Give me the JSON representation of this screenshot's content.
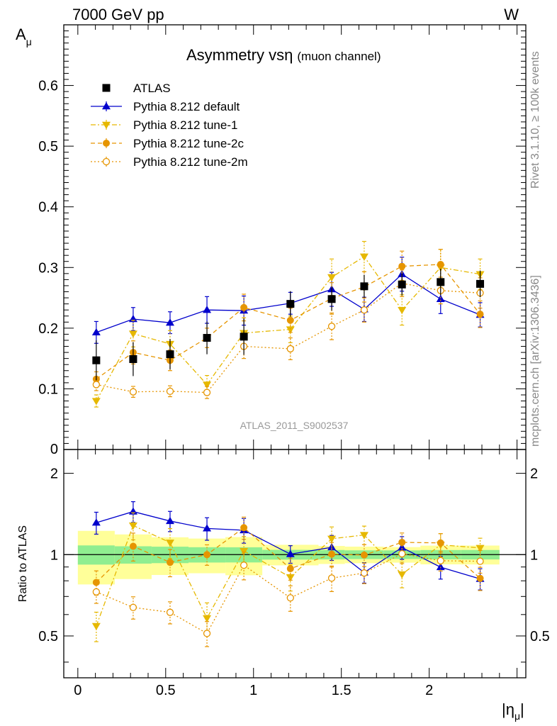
{
  "header": {
    "left": "7000 GeV pp",
    "right": "W"
  },
  "side_labels": {
    "rivet": "Rivet 3.1.10, ≥ 100k events",
    "mcplots": "mcplots.cern.ch [arXiv:1306.3436]"
  },
  "colors": {
    "data": "#000000",
    "default": "#0000cc",
    "tune1": "#e6b800",
    "tune2c": "#e69500",
    "tune2m": "#e69500",
    "band_inner": "#90ee90",
    "band_outer": "#ffff99",
    "watermark": "#999999"
  },
  "chart_data": {
    "type": "scatter",
    "title_main": "Asymmetry vs",
    "title_symbol": "η",
    "title_sub": "(muon channel)",
    "analysis_tag": "ATLAS_2011_S9002537",
    "ylabel_main": "A",
    "ylabel_sub": "μ",
    "ratio_ylabel": "Ratio to ATLAS",
    "xlabel_main": "|η",
    "xlabel_sub": "μ",
    "xlabel_close": "|",
    "xlim": [
      -0.08,
      2.55
    ],
    "ylim_main": [
      0.0,
      0.7
    ],
    "ylim_ratio": [
      0.35,
      2.45
    ],
    "x_ticks": [
      0,
      0.5,
      1,
      1.5,
      2
    ],
    "x_tick_labels": [
      "0",
      "0.5",
      "1",
      "1.5",
      "2"
    ],
    "y_ticks_main": [
      0.1,
      0.2,
      0.3,
      0.4,
      0.5,
      0.6
    ],
    "y_tick_labels_main": [
      "0.1",
      "0.2",
      "0.3",
      "0.4",
      "0.5",
      "0.6"
    ],
    "y_zero_label": "0",
    "y_ticks_ratio": [
      0.5,
      1,
      2
    ],
    "y_tick_labels_ratio": [
      "0.5",
      "1",
      "2"
    ],
    "bins": [
      [
        0.0,
        0.21
      ],
      [
        0.21,
        0.42
      ],
      [
        0.42,
        0.63
      ],
      [
        0.63,
        0.84
      ],
      [
        0.84,
        1.05
      ],
      [
        1.05,
        1.37
      ],
      [
        1.37,
        1.52
      ],
      [
        1.52,
        1.74
      ],
      [
        1.74,
        1.95
      ],
      [
        1.95,
        2.18
      ],
      [
        2.18,
        2.4
      ]
    ],
    "x": [
      0.105,
      0.315,
      0.525,
      0.735,
      0.945,
      1.21,
      1.445,
      1.63,
      1.845,
      2.065,
      2.29
    ],
    "data": {
      "name": "ATLAS",
      "values": [
        0.147,
        0.149,
        0.157,
        0.184,
        0.186,
        0.24,
        0.248,
        0.269,
        0.272,
        0.276,
        0.273
      ],
      "err_inner": [
        0.012,
        0.011,
        0.011,
        0.012,
        0.012,
        0.01,
        0.01,
        0.01,
        0.01,
        0.011,
        0.011
      ],
      "err_outer": [
        0.033,
        0.028,
        0.025,
        0.027,
        0.03,
        0.021,
        0.019,
        0.019,
        0.018,
        0.022,
        0.022
      ]
    },
    "series": [
      {
        "name": "Pythia 8.212 default",
        "key": "default",
        "marker": "triangle-up",
        "dash": "",
        "values": [
          0.193,
          0.215,
          0.209,
          0.23,
          0.229,
          0.241,
          0.264,
          0.231,
          0.289,
          0.248,
          0.222
        ],
        "errors": [
          0.018,
          0.019,
          0.018,
          0.022,
          0.024,
          0.018,
          0.028,
          0.02,
          0.028,
          0.024,
          0.02
        ]
      },
      {
        "name": "Pythia 8.212 tune-1",
        "key": "tune1",
        "marker": "triangle-down",
        "dash": "7,3,2,3",
        "values": [
          0.08,
          0.191,
          0.174,
          0.107,
          0.192,
          0.198,
          0.284,
          0.318,
          0.23,
          0.3,
          0.289
        ],
        "errors": [
          0.01,
          0.022,
          0.022,
          0.015,
          0.025,
          0.022,
          0.03,
          0.025,
          0.025,
          0.03,
          0.025
        ]
      },
      {
        "name": "Pythia 8.212 tune-2c",
        "key": "tune2c",
        "marker": "circle",
        "dash": "6,4",
        "values": [
          0.116,
          0.16,
          0.147,
          0.184,
          0.234,
          0.213,
          0.249,
          0.268,
          0.302,
          0.305,
          0.223
        ],
        "errors": [
          0.012,
          0.019,
          0.017,
          0.016,
          0.022,
          0.02,
          0.026,
          0.025,
          0.025,
          0.025,
          0.022
        ]
      },
      {
        "name": "Pythia 8.212 tune-2m",
        "key": "tune2m",
        "marker": "circle-open",
        "dash": "2,3",
        "values": [
          0.107,
          0.095,
          0.096,
          0.094,
          0.17,
          0.166,
          0.203,
          0.23,
          0.274,
          0.262,
          0.258
        ],
        "errors": [
          0.01,
          0.009,
          0.009,
          0.01,
          0.02,
          0.018,
          0.022,
          0.02,
          0.022,
          0.022,
          0.025
        ]
      }
    ]
  }
}
